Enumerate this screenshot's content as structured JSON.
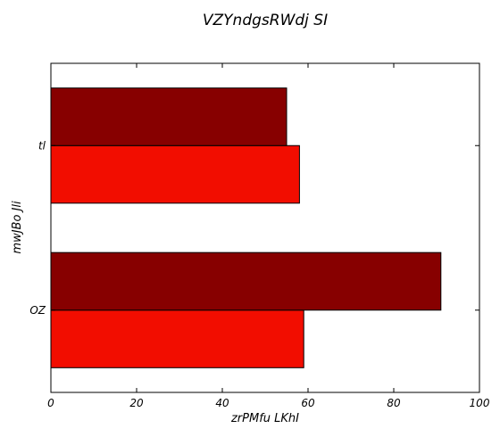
{
  "chart_data": {
    "type": "bar",
    "orientation": "horizontal",
    "title": "VZYndgsRWdj SI",
    "xlabel": "zrPMfu LKhI",
    "ylabel": "mwJBo Jli",
    "categories": [
      "OZ",
      "tl"
    ],
    "series": [
      {
        "values": [
          59,
          58
        ],
        "color": "#f20d00"
      },
      {
        "values": [
          91,
          55
        ],
        "color": "#870000"
      }
    ],
    "xlim": [
      0,
      100
    ],
    "xticks": [
      "0",
      "20",
      "40",
      "60",
      "80",
      "100"
    ],
    "grid": false,
    "legend": "none"
  }
}
